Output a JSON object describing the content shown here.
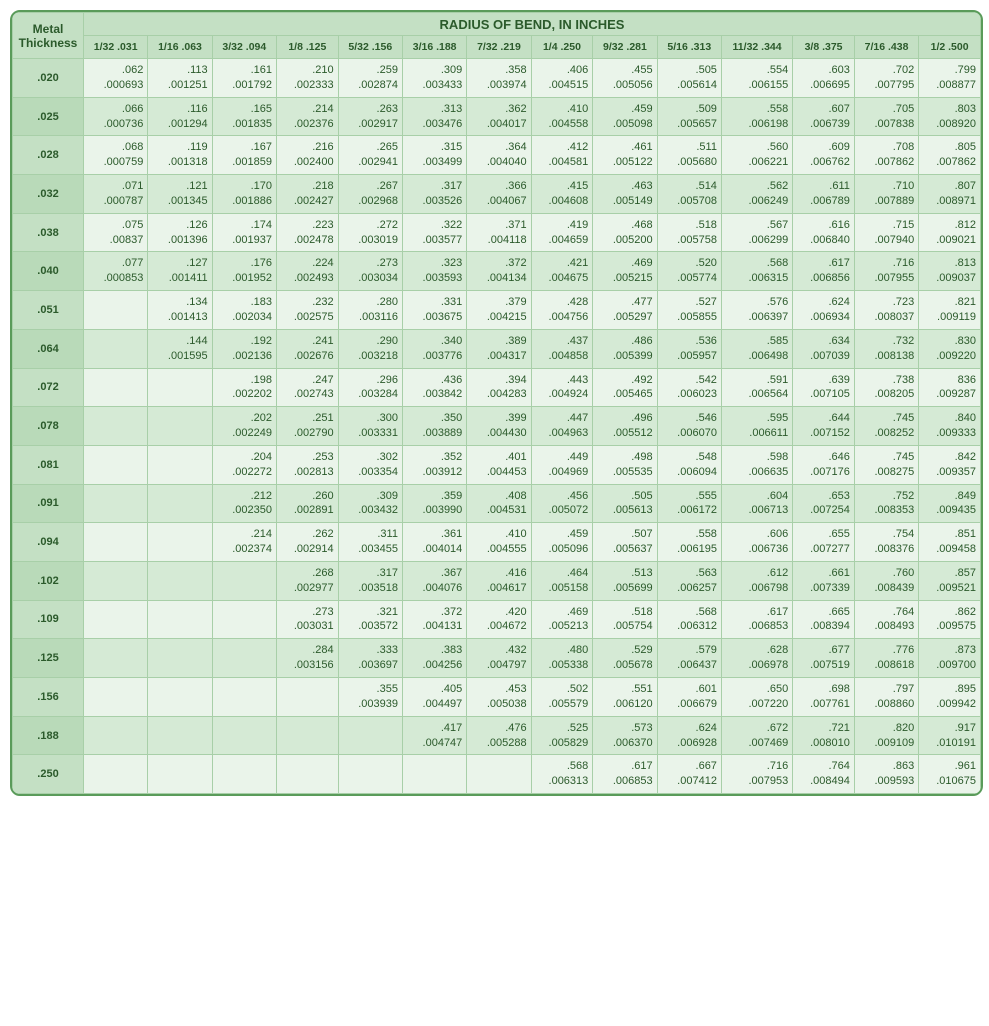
{
  "table": {
    "title_left": "Metal Thickness",
    "title_right": "RADIUS OF BEND, IN INCHES",
    "columns": [
      "1/32 .031",
      "1/16 .063",
      "3/32 .094",
      "1/8 .125",
      "5/32 .156",
      "3/16 .188",
      "7/32 .219",
      "1/4 .250",
      "9/32 .281",
      "5/16 .313",
      "11/32 .344",
      "3/8 .375",
      "7/16 .438",
      "1/2 .500"
    ],
    "rows": [
      {
        "t": ".020",
        "c": [
          [
            ".062",
            ".000693"
          ],
          [
            ".113",
            ".001251"
          ],
          [
            ".161",
            ".001792"
          ],
          [
            ".210",
            ".002333"
          ],
          [
            ".259",
            ".002874"
          ],
          [
            ".309",
            ".003433"
          ],
          [
            ".358",
            ".003974"
          ],
          [
            ".406",
            ".004515"
          ],
          [
            ".455",
            ".005056"
          ],
          [
            ".505",
            ".005614"
          ],
          [
            ".554",
            ".006155"
          ],
          [
            ".603",
            ".006695"
          ],
          [
            ".702",
            ".007795"
          ],
          [
            ".799",
            ".008877"
          ]
        ]
      },
      {
        "t": ".025",
        "c": [
          [
            ".066",
            ".000736"
          ],
          [
            ".116",
            ".001294"
          ],
          [
            ".165",
            ".001835"
          ],
          [
            ".214",
            ".002376"
          ],
          [
            ".263",
            ".002917"
          ],
          [
            ".313",
            ".003476"
          ],
          [
            ".362",
            ".004017"
          ],
          [
            ".410",
            ".004558"
          ],
          [
            ".459",
            ".005098"
          ],
          [
            ".509",
            ".005657"
          ],
          [
            ".558",
            ".006198"
          ],
          [
            ".607",
            ".006739"
          ],
          [
            ".705",
            ".007838"
          ],
          [
            ".803",
            ".008920"
          ]
        ]
      },
      {
        "t": ".028",
        "c": [
          [
            ".068",
            ".000759"
          ],
          [
            ".119",
            ".001318"
          ],
          [
            ".167",
            ".001859"
          ],
          [
            ".216",
            ".002400"
          ],
          [
            ".265",
            ".002941"
          ],
          [
            ".315",
            ".003499"
          ],
          [
            ".364",
            ".004040"
          ],
          [
            ".412",
            ".004581"
          ],
          [
            ".461",
            ".005122"
          ],
          [
            ".511",
            ".005680"
          ],
          [
            ".560",
            ".006221"
          ],
          [
            ".609",
            ".006762"
          ],
          [
            ".708",
            ".007862"
          ],
          [
            ".805",
            ".007862"
          ]
        ]
      },
      {
        "t": ".032",
        "c": [
          [
            ".071",
            ".000787"
          ],
          [
            ".121",
            ".001345"
          ],
          [
            ".170",
            ".001886"
          ],
          [
            ".218",
            ".002427"
          ],
          [
            ".267",
            ".002968"
          ],
          [
            ".317",
            ".003526"
          ],
          [
            ".366",
            ".004067"
          ],
          [
            ".415",
            ".004608"
          ],
          [
            ".463",
            ".005149"
          ],
          [
            ".514",
            ".005708"
          ],
          [
            ".562",
            ".006249"
          ],
          [
            ".611",
            ".006789"
          ],
          [
            ".710",
            ".007889"
          ],
          [
            ".807",
            ".008971"
          ]
        ]
      },
      {
        "t": ".038",
        "c": [
          [
            ".075",
            ".00837"
          ],
          [
            ".126",
            ".001396"
          ],
          [
            ".174",
            ".001937"
          ],
          [
            ".223",
            ".002478"
          ],
          [
            ".272",
            ".003019"
          ],
          [
            ".322",
            ".003577"
          ],
          [
            ".371",
            ".004118"
          ],
          [
            ".419",
            ".004659"
          ],
          [
            ".468",
            ".005200"
          ],
          [
            ".518",
            ".005758"
          ],
          [
            ".567",
            ".006299"
          ],
          [
            ".616",
            ".006840"
          ],
          [
            ".715",
            ".007940"
          ],
          [
            ".812",
            ".009021"
          ]
        ]
      },
      {
        "t": ".040",
        "c": [
          [
            ".077",
            ".000853"
          ],
          [
            ".127",
            ".001411"
          ],
          [
            ".176",
            ".001952"
          ],
          [
            ".224",
            ".002493"
          ],
          [
            ".273",
            ".003034"
          ],
          [
            ".323",
            ".003593"
          ],
          [
            ".372",
            ".004134"
          ],
          [
            ".421",
            ".004675"
          ],
          [
            ".469",
            ".005215"
          ],
          [
            ".520",
            ".005774"
          ],
          [
            ".568",
            ".006315"
          ],
          [
            ".617",
            ".006856"
          ],
          [
            ".716",
            ".007955"
          ],
          [
            ".813",
            ".009037"
          ]
        ]
      },
      {
        "t": ".051",
        "c": [
          null,
          [
            ".134",
            ".001413"
          ],
          [
            ".183",
            ".002034"
          ],
          [
            ".232",
            ".002575"
          ],
          [
            ".280",
            ".003116"
          ],
          [
            ".331",
            ".003675"
          ],
          [
            ".379",
            ".004215"
          ],
          [
            ".428",
            ".004756"
          ],
          [
            ".477",
            ".005297"
          ],
          [
            ".527",
            ".005855"
          ],
          [
            ".576",
            ".006397"
          ],
          [
            ".624",
            ".006934"
          ],
          [
            ".723",
            ".008037"
          ],
          [
            ".821",
            ".009119"
          ]
        ]
      },
      {
        "t": ".064",
        "c": [
          null,
          [
            ".144",
            ".001595"
          ],
          [
            ".192",
            ".002136"
          ],
          [
            ".241",
            ".002676"
          ],
          [
            ".290",
            ".003218"
          ],
          [
            ".340",
            ".003776"
          ],
          [
            ".389",
            ".004317"
          ],
          [
            ".437",
            ".004858"
          ],
          [
            ".486",
            ".005399"
          ],
          [
            ".536",
            ".005957"
          ],
          [
            ".585",
            ".006498"
          ],
          [
            ".634",
            ".007039"
          ],
          [
            ".732",
            ".008138"
          ],
          [
            ".830",
            ".009220"
          ]
        ]
      },
      {
        "t": ".072",
        "c": [
          null,
          null,
          [
            ".198",
            ".002202"
          ],
          [
            ".247",
            ".002743"
          ],
          [
            ".296",
            ".003284"
          ],
          [
            ".436",
            ".003842"
          ],
          [
            ".394",
            ".004283"
          ],
          [
            ".443",
            ".004924"
          ],
          [
            ".492",
            ".005465"
          ],
          [
            ".542",
            ".006023"
          ],
          [
            ".591",
            ".006564"
          ],
          [
            ".639",
            ".007105"
          ],
          [
            ".738",
            ".008205"
          ],
          [
            "836",
            ".009287"
          ]
        ]
      },
      {
        "t": ".078",
        "c": [
          null,
          null,
          [
            ".202",
            ".002249"
          ],
          [
            ".251",
            ".002790"
          ],
          [
            ".300",
            ".003331"
          ],
          [
            ".350",
            ".003889"
          ],
          [
            ".399",
            ".004430"
          ],
          [
            ".447",
            ".004963"
          ],
          [
            ".496",
            ".005512"
          ],
          [
            ".546",
            ".006070"
          ],
          [
            ".595",
            ".006611"
          ],
          [
            ".644",
            ".007152"
          ],
          [
            ".745",
            ".008252"
          ],
          [
            ".840",
            ".009333"
          ]
        ]
      },
      {
        "t": ".081",
        "c": [
          null,
          null,
          [
            ".204",
            ".002272"
          ],
          [
            ".253",
            ".002813"
          ],
          [
            ".302",
            ".003354"
          ],
          [
            ".352",
            ".003912"
          ],
          [
            ".401",
            ".004453"
          ],
          [
            ".449",
            ".004969"
          ],
          [
            ".498",
            ".005535"
          ],
          [
            ".548",
            ".006094"
          ],
          [
            ".598",
            ".006635"
          ],
          [
            ".646",
            ".007176"
          ],
          [
            ".745",
            ".008275"
          ],
          [
            ".842",
            ".009357"
          ]
        ]
      },
      {
        "t": ".091",
        "c": [
          null,
          null,
          [
            ".212",
            ".002350"
          ],
          [
            ".260",
            ".002891"
          ],
          [
            ".309",
            ".003432"
          ],
          [
            ".359",
            ".003990"
          ],
          [
            ".408",
            ".004531"
          ],
          [
            ".456",
            ".005072"
          ],
          [
            ".505",
            ".005613"
          ],
          [
            ".555",
            ".006172"
          ],
          [
            ".604",
            ".006713"
          ],
          [
            ".653",
            ".007254"
          ],
          [
            ".752",
            ".008353"
          ],
          [
            ".849",
            ".009435"
          ]
        ]
      },
      {
        "t": ".094",
        "c": [
          null,
          null,
          [
            ".214",
            ".002374"
          ],
          [
            ".262",
            ".002914"
          ],
          [
            ".311",
            ".003455"
          ],
          [
            ".361",
            ".004014"
          ],
          [
            ".410",
            ".004555"
          ],
          [
            ".459",
            ".005096"
          ],
          [
            ".507",
            ".005637"
          ],
          [
            ".558",
            ".006195"
          ],
          [
            ".606",
            ".006736"
          ],
          [
            ".655",
            ".007277"
          ],
          [
            ".754",
            ".008376"
          ],
          [
            ".851",
            ".009458"
          ]
        ]
      },
      {
        "t": ".102",
        "c": [
          null,
          null,
          null,
          [
            ".268",
            ".002977"
          ],
          [
            ".317",
            ".003518"
          ],
          [
            ".367",
            ".004076"
          ],
          [
            ".416",
            ".004617"
          ],
          [
            ".464",
            ".005158"
          ],
          [
            ".513",
            ".005699"
          ],
          [
            ".563",
            ".006257"
          ],
          [
            ".612",
            ".006798"
          ],
          [
            ".661",
            ".007339"
          ],
          [
            ".760",
            ".008439"
          ],
          [
            ".857",
            ".009521"
          ]
        ]
      },
      {
        "t": ".109",
        "c": [
          null,
          null,
          null,
          [
            ".273",
            ".003031"
          ],
          [
            ".321",
            ".003572"
          ],
          [
            ".372",
            ".004131"
          ],
          [
            ".420",
            ".004672"
          ],
          [
            ".469",
            ".005213"
          ],
          [
            ".518",
            ".005754"
          ],
          [
            ".568",
            ".006312"
          ],
          [
            ".617",
            ".006853"
          ],
          [
            ".665",
            ".008394"
          ],
          [
            ".764",
            ".008493"
          ],
          [
            ".862",
            ".009575"
          ]
        ]
      },
      {
        "t": ".125",
        "c": [
          null,
          null,
          null,
          [
            ".284",
            ".003156"
          ],
          [
            ".333",
            ".003697"
          ],
          [
            ".383",
            ".004256"
          ],
          [
            ".432",
            ".004797"
          ],
          [
            ".480",
            ".005338"
          ],
          [
            ".529",
            ".005678"
          ],
          [
            ".579",
            ".006437"
          ],
          [
            ".628",
            ".006978"
          ],
          [
            ".677",
            ".007519"
          ],
          [
            ".776",
            ".008618"
          ],
          [
            ".873",
            ".009700"
          ]
        ]
      },
      {
        "t": ".156",
        "c": [
          null,
          null,
          null,
          null,
          [
            ".355",
            ".003939"
          ],
          [
            ".405",
            ".004497"
          ],
          [
            ".453",
            ".005038"
          ],
          [
            ".502",
            ".005579"
          ],
          [
            ".551",
            ".006120"
          ],
          [
            ".601",
            ".006679"
          ],
          [
            ".650",
            ".007220"
          ],
          [
            ".698",
            ".007761"
          ],
          [
            ".797",
            ".008860"
          ],
          [
            ".895",
            ".009942"
          ]
        ]
      },
      {
        "t": ".188",
        "c": [
          null,
          null,
          null,
          null,
          null,
          [
            ".417",
            ".004747"
          ],
          [
            ".476",
            ".005288"
          ],
          [
            ".525",
            ".005829"
          ],
          [
            ".573",
            ".006370"
          ],
          [
            ".624",
            ".006928"
          ],
          [
            ".672",
            ".007469"
          ],
          [
            ".721",
            ".008010"
          ],
          [
            ".820",
            ".009109"
          ],
          [
            ".917",
            ".010191"
          ]
        ]
      },
      {
        "t": ".250",
        "c": [
          null,
          null,
          null,
          null,
          null,
          null,
          null,
          [
            ".568",
            ".006313"
          ],
          [
            ".617",
            ".006853"
          ],
          [
            ".667",
            ".007412"
          ],
          [
            ".716",
            ".007953"
          ],
          [
            ".764",
            ".008494"
          ],
          [
            ".863",
            ".009593"
          ],
          [
            ".961",
            ".010675"
          ]
        ]
      }
    ],
    "colors": {
      "border": "#5a9b5a",
      "header_bg": "#c4e0c4",
      "odd_bg": "#eaf4ea",
      "even_bg": "#d5ead5",
      "text": "#2b5a2b",
      "grid": "#a8cfa8"
    },
    "font_family": "Arial",
    "cell_fontsize": 11,
    "header_fontsize": 11,
    "title_fontsize": 13
  }
}
